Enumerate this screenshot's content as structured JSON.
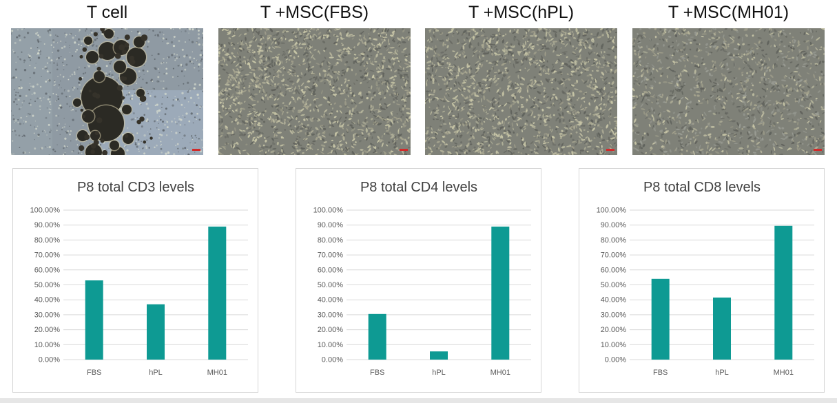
{
  "micrographs": [
    {
      "title": "T cell",
      "condition": "t-cell"
    },
    {
      "title": "T +MSC(FBS)",
      "condition": "msc-fbs"
    },
    {
      "title": "T +MSC(hPL)",
      "condition": "msc-hpl"
    },
    {
      "title": "T +MSC(MH01)",
      "condition": "msc-mh01"
    }
  ],
  "colors": {
    "bar": "#0E9A93",
    "grid": "#d9d9d9",
    "tick_text": "#595959",
    "title_text": "#404040"
  },
  "chart_data": [
    {
      "type": "bar",
      "title": "P8 total CD3 levels",
      "categories": [
        "FBS",
        "hPL",
        "MH01"
      ],
      "values": [
        0.53,
        0.37,
        0.89
      ],
      "ylim": [
        0,
        1
      ],
      "yticks": [
        "0.00%",
        "10.00%",
        "20.00%",
        "30.00%",
        "40.00%",
        "50.00%",
        "60.00%",
        "70.00%",
        "80.00%",
        "90.00%",
        "100.00%"
      ],
      "xlabel": "",
      "ylabel": ""
    },
    {
      "type": "bar",
      "title": "P8 total CD4 levels",
      "categories": [
        "FBS",
        "hPL",
        "MH01"
      ],
      "values": [
        0.305,
        0.055,
        0.89
      ],
      "ylim": [
        0,
        1
      ],
      "yticks": [
        "0.00%",
        "10.00%",
        "20.00%",
        "30.00%",
        "40.00%",
        "50.00%",
        "60.00%",
        "70.00%",
        "80.00%",
        "90.00%",
        "100.00%"
      ],
      "xlabel": "",
      "ylabel": ""
    },
    {
      "type": "bar",
      "title": "P8 total CD8 levels",
      "categories": [
        "FBS",
        "hPL",
        "MH01"
      ],
      "values": [
        0.54,
        0.415,
        0.895
      ],
      "ylim": [
        0,
        1
      ],
      "yticks": [
        "0.00%",
        "10.00%",
        "20.00%",
        "30.00%",
        "40.00%",
        "50.00%",
        "60.00%",
        "70.00%",
        "80.00%",
        "90.00%",
        "100.00%"
      ],
      "xlabel": "",
      "ylabel": ""
    }
  ]
}
